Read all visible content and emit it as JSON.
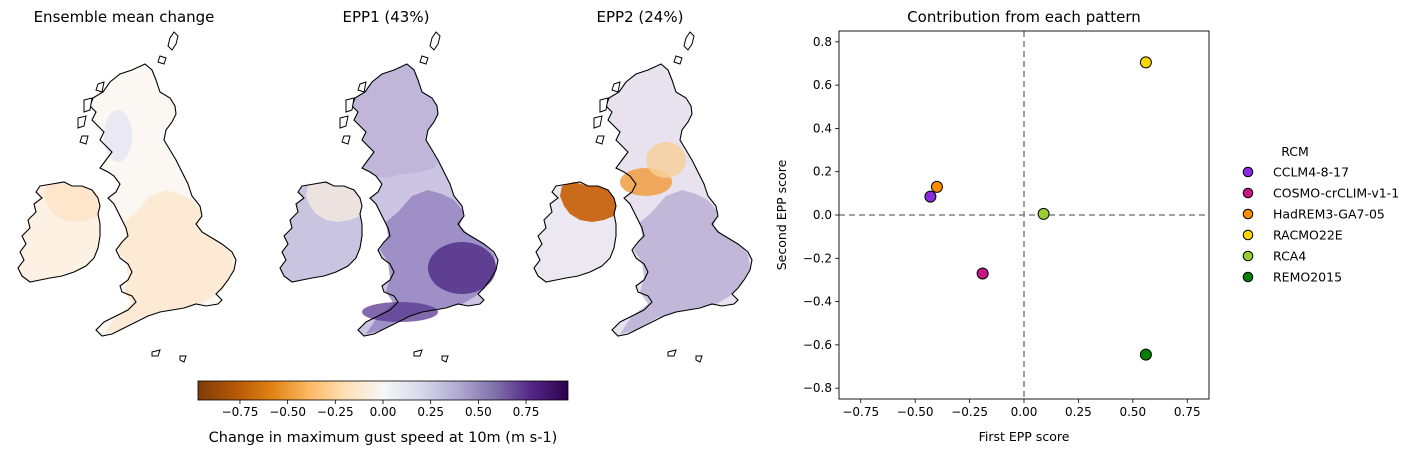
{
  "maps": {
    "panels": [
      {
        "title": "Ensemble mean change"
      },
      {
        "title": "EPP1 (43%)"
      },
      {
        "title": "EPP2 (24%)"
      }
    ],
    "colorbar": {
      "label": "Change in maximum gust speed at 10m (m s-1)",
      "min": -0.97,
      "max": 0.97,
      "ticks": [
        "−0.75",
        "−0.50",
        "−0.25",
        "0.00",
        "0.25",
        "0.50",
        "0.75"
      ],
      "tick_values": [
        -0.75,
        -0.5,
        -0.25,
        0.0,
        0.25,
        0.5,
        0.75
      ],
      "colormap": "PuOr",
      "colors": [
        "#7f3b08",
        "#b35806",
        "#e08214",
        "#fdb863",
        "#fee0b6",
        "#f7f7f7",
        "#d8daeb",
        "#b2abd2",
        "#8073ac",
        "#542788",
        "#2d004b"
      ]
    }
  },
  "chart_data": {
    "type": "scatter",
    "title": "Contribution from each pattern",
    "xlabel": "First EPP score",
    "ylabel": "Second EPP score",
    "xlim": [
      -0.85,
      0.85
    ],
    "ylim": [
      -0.85,
      0.85
    ],
    "xticks": [
      "−0.75",
      "−0.50",
      "−0.25",
      "0.00",
      "0.25",
      "0.50",
      "0.75"
    ],
    "xtick_values": [
      -0.75,
      -0.5,
      -0.25,
      0.0,
      0.25,
      0.5,
      0.75
    ],
    "yticks": [
      "−0.8",
      "−0.6",
      "−0.4",
      "−0.2",
      "0.0",
      "0.2",
      "0.4",
      "0.6",
      "0.8"
    ],
    "ytick_values": [
      -0.8,
      -0.6,
      -0.4,
      -0.2,
      0.0,
      0.2,
      0.4,
      0.6,
      0.8
    ],
    "reference_lines": {
      "x": 0,
      "y": 0,
      "style": "dashed",
      "color": "#808080"
    },
    "legend": {
      "title": "RCM",
      "placement": "right"
    },
    "series": [
      {
        "name": "CCLM4-8-17",
        "color": "#8a2be2",
        "x": -0.43,
        "y": 0.085
      },
      {
        "name": "COSMO-crCLIM-v1-1",
        "color": "#c71585",
        "x": -0.19,
        "y": -0.27
      },
      {
        "name": "HadREM3-GA7-05",
        "color": "#ff8c00",
        "x": -0.4,
        "y": 0.13
      },
      {
        "name": "RACMO22E",
        "color": "#ffd700",
        "x": 0.56,
        "y": 0.705
      },
      {
        "name": "RCA4",
        "color": "#9acd32",
        "x": 0.09,
        "y": 0.005
      },
      {
        "name": "REMO2015",
        "color": "#008000",
        "x": 0.56,
        "y": -0.645
      }
    ]
  }
}
